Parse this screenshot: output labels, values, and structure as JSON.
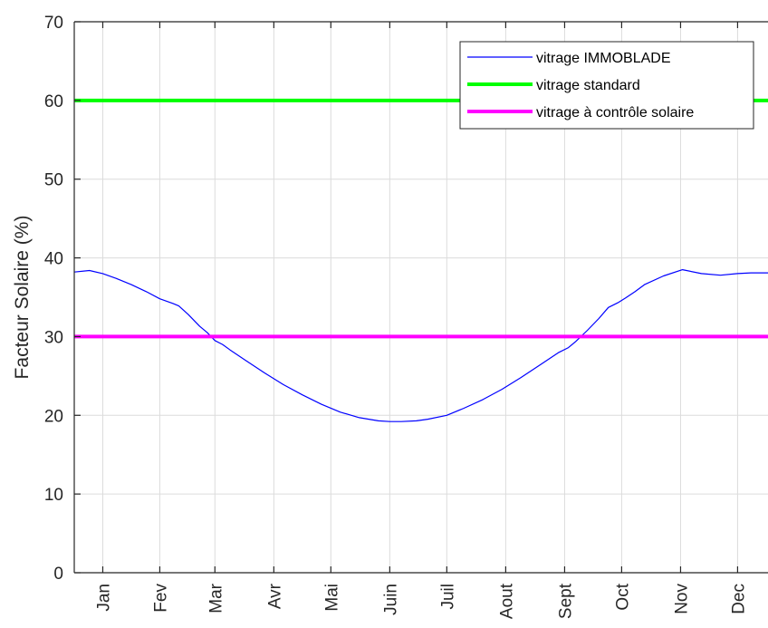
{
  "chart_data": {
    "type": "line",
    "ylabel": "Facteur Solaire (%)",
    "ylim": [
      0,
      70
    ],
    "yticks": [
      0,
      10,
      20,
      30,
      40,
      50,
      60,
      70
    ],
    "xlim": [
      0,
      365
    ],
    "grid": true,
    "legend_position": "top-right",
    "categories": [
      "Jan",
      "Fev",
      "Mar",
      "Avr",
      "Mai",
      "Juin",
      "Juil",
      "Aout",
      "Sept",
      "Oct",
      "Nov",
      "Dec"
    ],
    "category_days": [
      15,
      45,
      74,
      105,
      135,
      166,
      196,
      227,
      258,
      288,
      319,
      349
    ],
    "series": [
      {
        "name": "vitrage IMMOBLADE",
        "color": "#0000ff",
        "width": "thin",
        "x": [
          0,
          8,
          15,
          22,
          30,
          38,
          45,
          52,
          55,
          60,
          66,
          70,
          74,
          78,
          82,
          90,
          100,
          110,
          120,
          130,
          140,
          150,
          160,
          166,
          172,
          180,
          186,
          196,
          205,
          215,
          225,
          235,
          245,
          255,
          260,
          264,
          270,
          276,
          281,
          286,
          290,
          295,
          300,
          310,
          320,
          330,
          340,
          349,
          356,
          360,
          365
        ],
        "y": [
          38.2,
          38.4,
          38.0,
          37.4,
          36.6,
          35.7,
          34.8,
          34.2,
          33.9,
          32.8,
          31.3,
          30.5,
          29.5,
          29.0,
          28.3,
          27.0,
          25.4,
          23.9,
          22.6,
          21.4,
          20.4,
          19.7,
          19.3,
          19.2,
          19.2,
          19.3,
          19.5,
          20.0,
          20.9,
          22.0,
          23.3,
          24.8,
          26.4,
          28.0,
          28.6,
          29.4,
          30.8,
          32.3,
          33.7,
          34.3,
          34.9,
          35.7,
          36.6,
          37.7,
          38.5,
          38.0,
          37.8,
          38.0,
          38.1,
          38.1,
          38.1
        ]
      },
      {
        "name": "vitrage standard",
        "color": "#00ff00",
        "width": "thick",
        "x": [
          0,
          365
        ],
        "y": [
          60,
          60
        ]
      },
      {
        "name": "vitrage à contrôle solaire",
        "color": "#ff00ff",
        "width": "thick",
        "x": [
          0,
          365
        ],
        "y": [
          30,
          30
        ]
      }
    ]
  }
}
